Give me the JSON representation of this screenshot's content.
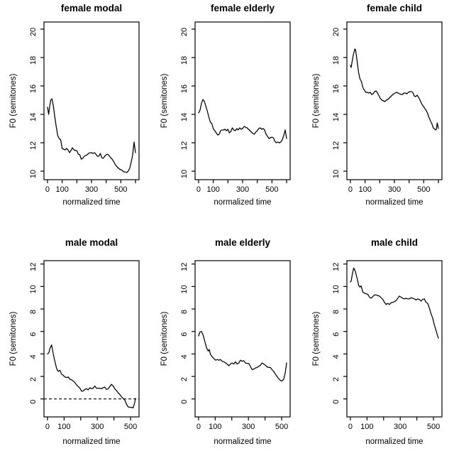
{
  "page": {
    "background_color": "#ffffff",
    "line_color": "#000000"
  },
  "chart_data": [
    {
      "type": "line",
      "title": "female modal",
      "xlabel": "normalized time",
      "ylabel": "F0 (semitones)",
      "xlim": [
        -24,
        624
      ],
      "ylim": [
        9.4,
        20.5
      ],
      "xticks": [
        0,
        100,
        200,
        300,
        400,
        500,
        600
      ],
      "xtick_labels": [
        "0",
        "100",
        "",
        "300",
        "",
        "500",
        ""
      ],
      "yticks": [
        10,
        12,
        14,
        16,
        18,
        20
      ],
      "grid": false,
      "legend": "none",
      "zero_line_dashed": false,
      "x": [
        0,
        8,
        15,
        22,
        30,
        40,
        50,
        60,
        70,
        80,
        90,
        95,
        100,
        110,
        120,
        130,
        140,
        150,
        160,
        170,
        180,
        190,
        200,
        210,
        220,
        230,
        240,
        250,
        260,
        270,
        280,
        290,
        300,
        310,
        320,
        330,
        340,
        350,
        360,
        370,
        380,
        390,
        400,
        410,
        420,
        430,
        440,
        450,
        460,
        470,
        480,
        490,
        500,
        510,
        520,
        530,
        540,
        550,
        560,
        570,
        580,
        590,
        600
      ],
      "y": [
        14.5,
        14.0,
        14.6,
        15.0,
        15.1,
        14.6,
        13.8,
        13.1,
        12.5,
        12.3,
        12.2,
        11.9,
        11.6,
        11.55,
        11.5,
        11.6,
        11.5,
        11.3,
        11.45,
        11.65,
        11.5,
        11.45,
        11.45,
        11.2,
        11.15,
        10.85,
        10.9,
        11.05,
        11.1,
        11.15,
        11.25,
        11.3,
        11.3,
        11.25,
        11.3,
        11.2,
        11.05,
        11.05,
        11.25,
        10.95,
        10.9,
        11.05,
        11.15,
        11.2,
        11.1,
        10.95,
        10.85,
        10.7,
        10.5,
        10.35,
        10.25,
        10.15,
        10.1,
        10.05,
        9.95,
        9.95,
        9.9,
        10.0,
        10.2,
        10.6,
        11.1,
        12.05,
        11.3
      ]
    },
    {
      "type": "line",
      "title": "female elderly",
      "xlabel": "normalized time",
      "ylabel": "F0 (semitones)",
      "xlim": [
        -24,
        624
      ],
      "ylim": [
        9.4,
        20.5
      ],
      "xticks": [
        0,
        100,
        200,
        300,
        400,
        500,
        600
      ],
      "xtick_labels": [
        "0",
        "100",
        "",
        "300",
        "",
        "500",
        ""
      ],
      "yticks": [
        10,
        12,
        14,
        16,
        18,
        20
      ],
      "grid": false,
      "legend": "none",
      "zero_line_dashed": false,
      "x": [
        0,
        10,
        20,
        30,
        40,
        50,
        60,
        70,
        80,
        90,
        100,
        110,
        120,
        130,
        140,
        150,
        160,
        170,
        180,
        190,
        200,
        210,
        220,
        230,
        240,
        250,
        260,
        270,
        280,
        290,
        300,
        310,
        320,
        330,
        340,
        350,
        360,
        370,
        380,
        390,
        400,
        410,
        420,
        430,
        440,
        450,
        460,
        470,
        480,
        490,
        500,
        510,
        520,
        530,
        540,
        550,
        560,
        570,
        580,
        590,
        600
      ],
      "y": [
        14.1,
        14.3,
        14.8,
        15.05,
        14.9,
        14.55,
        14.2,
        13.8,
        13.45,
        13.35,
        13.0,
        12.85,
        12.7,
        12.55,
        12.6,
        12.85,
        12.9,
        12.9,
        12.95,
        12.85,
        12.95,
        12.7,
        12.8,
        13.05,
        12.9,
        12.85,
        13.0,
        12.9,
        13.05,
        12.95,
        13.0,
        13.15,
        13.1,
        13.05,
        12.95,
        12.85,
        12.75,
        12.65,
        12.6,
        12.75,
        12.85,
        13.0,
        13.05,
        12.95,
        13.0,
        12.9,
        12.6,
        12.45,
        12.3,
        12.35,
        12.4,
        12.35,
        12.1,
        12.0,
        12.05,
        12.0,
        12.05,
        12.2,
        12.5,
        12.9,
        12.3
      ]
    },
    {
      "type": "line",
      "title": "female child",
      "xlabel": "normalized time",
      "ylabel": "F0 (semitones)",
      "xlim": [
        -24,
        624
      ],
      "ylim": [
        9.4,
        20.5
      ],
      "xticks": [
        0,
        100,
        200,
        300,
        400,
        500,
        600
      ],
      "xtick_labels": [
        "0",
        "100",
        "",
        "300",
        "",
        "500",
        ""
      ],
      "yticks": [
        10,
        12,
        14,
        16,
        18,
        20
      ],
      "grid": false,
      "legend": "none",
      "zero_line_dashed": false,
      "x": [
        0,
        5,
        10,
        20,
        30,
        35,
        45,
        55,
        65,
        75,
        85,
        95,
        105,
        115,
        125,
        135,
        145,
        155,
        165,
        175,
        185,
        195,
        205,
        215,
        225,
        235,
        245,
        255,
        265,
        275,
        285,
        295,
        305,
        315,
        325,
        335,
        345,
        355,
        365,
        375,
        385,
        395,
        405,
        415,
        425,
        435,
        445,
        455,
        465,
        475,
        485,
        495,
        505,
        515,
        525,
        535,
        545,
        555,
        565,
        575,
        585,
        592,
        600
      ],
      "y": [
        17.45,
        17.3,
        17.6,
        18.2,
        18.6,
        18.55,
        17.8,
        17.0,
        16.5,
        16.3,
        15.9,
        15.7,
        15.55,
        15.55,
        15.5,
        15.55,
        15.4,
        15.45,
        15.6,
        15.65,
        15.5,
        15.3,
        15.1,
        15.0,
        14.95,
        14.9,
        15.0,
        15.05,
        15.15,
        15.25,
        15.35,
        15.45,
        15.5,
        15.55,
        15.5,
        15.45,
        15.4,
        15.4,
        15.5,
        15.5,
        15.45,
        15.55,
        15.6,
        15.6,
        15.55,
        15.3,
        15.25,
        15.35,
        15.2,
        15.0,
        14.75,
        14.6,
        14.45,
        14.3,
        14.1,
        13.8,
        13.55,
        13.35,
        13.05,
        12.95,
        12.9,
        13.4,
        13.0
      ]
    },
    {
      "type": "line",
      "title": "male modal",
      "xlabel": "normalized time",
      "ylabel": "F0 (semitones)",
      "xlim": [
        -21,
        551
      ],
      "ylim": [
        -1.6,
        12.3
      ],
      "xticks": [
        0,
        100,
        200,
        300,
        400,
        500
      ],
      "xtick_labels": [
        "0",
        "100",
        "",
        "300",
        "",
        "500"
      ],
      "yticks": [
        0,
        2,
        4,
        6,
        8,
        10,
        12
      ],
      "grid": false,
      "legend": "none",
      "zero_line_dashed": true,
      "x": [
        0,
        8,
        15,
        25,
        35,
        45,
        55,
        65,
        75,
        85,
        95,
        105,
        115,
        125,
        135,
        145,
        155,
        165,
        175,
        185,
        195,
        205,
        215,
        225,
        235,
        245,
        255,
        265,
        275,
        285,
        295,
        305,
        315,
        325,
        335,
        345,
        355,
        365,
        375,
        385,
        395,
        405,
        415,
        425,
        435,
        445,
        455,
        465,
        475,
        485,
        495,
        505,
        515,
        522,
        530
      ],
      "y": [
        4.0,
        4.1,
        4.5,
        4.8,
        4.0,
        3.3,
        2.7,
        2.45,
        2.55,
        2.2,
        2.1,
        1.95,
        1.9,
        1.95,
        1.75,
        1.7,
        1.6,
        1.45,
        1.25,
        1.1,
        0.95,
        0.7,
        0.7,
        0.85,
        0.9,
        0.8,
        1.0,
        0.9,
        0.95,
        1.15,
        0.95,
        0.95,
        0.95,
        0.9,
        1.0,
        1.05,
        0.85,
        0.9,
        1.1,
        1.3,
        1.15,
        0.9,
        0.75,
        0.55,
        0.4,
        0.2,
        0.05,
        -0.1,
        -0.45,
        -0.7,
        -0.75,
        -0.75,
        -0.8,
        -0.5,
        0.05
      ]
    },
    {
      "type": "line",
      "title": "male elderly",
      "xlabel": "normalized time",
      "ylabel": "F0 (semitones)",
      "xlim": [
        -21,
        551
      ],
      "ylim": [
        -1.6,
        12.3
      ],
      "xticks": [
        0,
        100,
        200,
        300,
        400,
        500
      ],
      "xtick_labels": [
        "0",
        "100",
        "",
        "300",
        "",
        "500"
      ],
      "yticks": [
        0,
        2,
        4,
        6,
        8,
        10,
        12
      ],
      "grid": false,
      "legend": "none",
      "zero_line_dashed": false,
      "x": [
        0,
        8,
        18,
        28,
        38,
        48,
        58,
        64,
        72,
        82,
        92,
        102,
        112,
        122,
        132,
        142,
        152,
        162,
        172,
        182,
        192,
        202,
        212,
        222,
        232,
        242,
        252,
        262,
        272,
        282,
        292,
        302,
        312,
        322,
        332,
        342,
        352,
        362,
        372,
        382,
        392,
        402,
        412,
        422,
        432,
        442,
        452,
        462,
        472,
        482,
        492,
        502,
        512,
        521,
        530
      ],
      "y": [
        5.6,
        5.95,
        6.0,
        5.65,
        5.1,
        4.55,
        4.25,
        4.4,
        3.95,
        3.75,
        3.6,
        3.45,
        3.5,
        3.45,
        3.5,
        3.35,
        3.3,
        3.2,
        3.1,
        2.95,
        3.1,
        3.2,
        3.1,
        3.3,
        3.1,
        3.2,
        3.45,
        3.35,
        3.4,
        3.2,
        3.15,
        3.15,
        2.9,
        2.6,
        2.65,
        2.75,
        2.8,
        2.9,
        3.0,
        3.2,
        3.1,
        3.0,
        2.85,
        2.8,
        2.8,
        2.6,
        2.45,
        2.2,
        2.0,
        1.8,
        1.65,
        1.6,
        1.75,
        2.3,
        3.2
      ]
    },
    {
      "type": "line",
      "title": "male child",
      "xlabel": "normalized time",
      "ylabel": "F0 (semitones)",
      "xlim": [
        -21,
        551
      ],
      "ylim": [
        -1.6,
        12.3
      ],
      "xticks": [
        0,
        100,
        200,
        300,
        400,
        500
      ],
      "xtick_labels": [
        "0",
        "100",
        "",
        "300",
        "",
        "500"
      ],
      "yticks": [
        0,
        2,
        4,
        6,
        8,
        10,
        12
      ],
      "grid": false,
      "legend": "none",
      "zero_line_dashed": false,
      "x": [
        0,
        5,
        12,
        20,
        30,
        40,
        50,
        58,
        65,
        75,
        85,
        95,
        105,
        115,
        125,
        135,
        145,
        155,
        165,
        175,
        185,
        195,
        205,
        215,
        225,
        235,
        245,
        255,
        265,
        275,
        285,
        295,
        305,
        315,
        325,
        335,
        345,
        355,
        365,
        375,
        385,
        395,
        405,
        415,
        425,
        435,
        445,
        455,
        465,
        475,
        485,
        495,
        505,
        515,
        525,
        530
      ],
      "y": [
        10.4,
        10.5,
        11.1,
        11.65,
        11.35,
        10.75,
        10.1,
        9.95,
        10.05,
        9.5,
        9.4,
        9.35,
        9.3,
        9.05,
        8.95,
        9.1,
        9.25,
        9.25,
        9.2,
        9.15,
        9.0,
        8.85,
        8.6,
        8.4,
        8.5,
        8.4,
        8.55,
        8.6,
        8.65,
        8.75,
        8.95,
        9.15,
        9.05,
        8.95,
        8.9,
        8.95,
        8.9,
        8.9,
        9.0,
        8.95,
        8.9,
        8.8,
        8.9,
        8.85,
        8.7,
        8.85,
        8.9,
        8.6,
        8.5,
        8.1,
        7.6,
        7.2,
        6.6,
        6.1,
        5.6,
        5.4
      ]
    }
  ]
}
